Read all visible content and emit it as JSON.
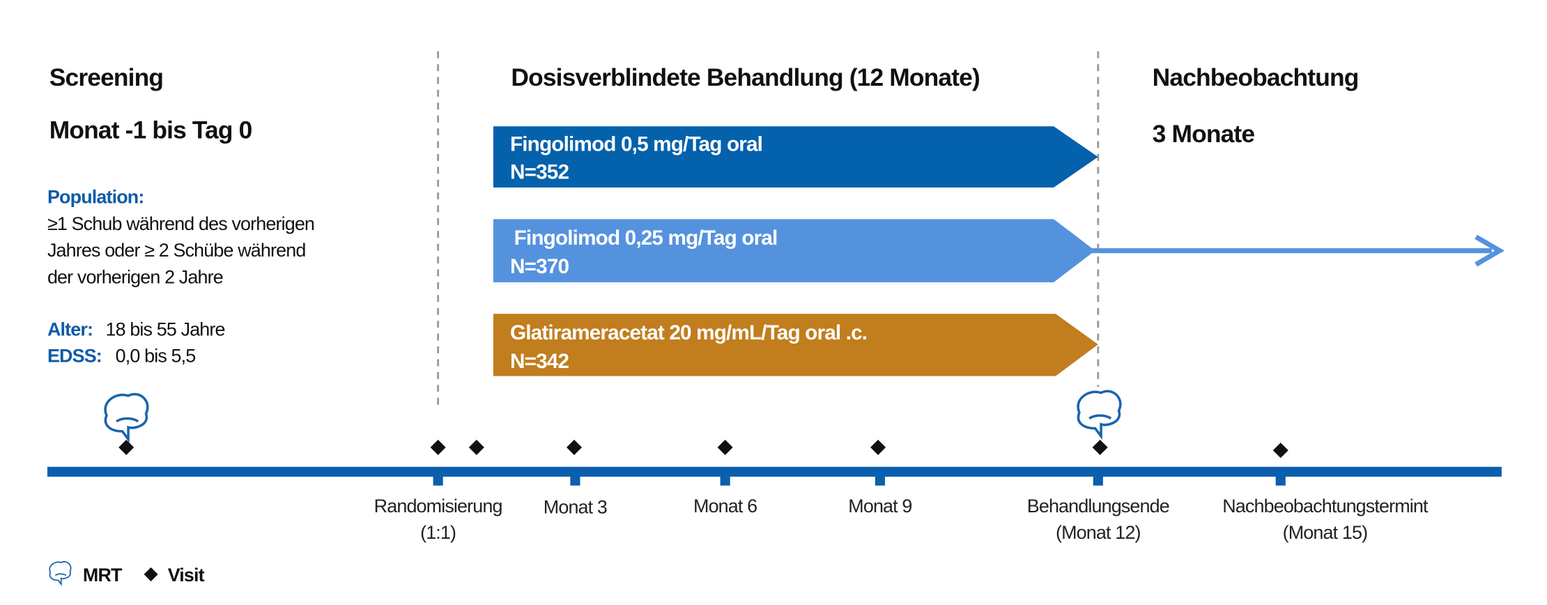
{
  "phases": [
    {
      "title": "Screening",
      "subtitle": "Monat -1 bis Tag 0"
    },
    {
      "title": "Dosisverblindete Behandlung (12 Monate)"
    },
    {
      "title": "Nachbeobachtung",
      "subtitle": "3 Monate"
    }
  ],
  "population": {
    "label": "Population:",
    "lines": [
      "≥1 Schub während des vorherigen",
      "Jahres oder ≥ 2 Schübe während",
      "der vorherigen 2 Jahre"
    ]
  },
  "criteria": [
    {
      "label": "Alter:",
      "text": "18 bis 55 Jahre"
    },
    {
      "label": "EDSS:",
      "text": "0,0 bis 5,5"
    }
  ],
  "arms": [
    {
      "name": "Fingolimod 0,5 mg/Tag oral",
      "n": "N=352"
    },
    {
      "name": "Fingolimod 0,25 mg/Tag oral",
      "n": "N=370"
    },
    {
      "name": "Glatirameracetat 20 mg/mL/Tag oral .c.",
      "n": "N=342"
    }
  ],
  "timeline": [
    {
      "lines": [
        "Randomisierung",
        "(1:1)"
      ]
    },
    {
      "lines": [
        "Monat 3"
      ]
    },
    {
      "lines": [
        "Monat 6"
      ]
    },
    {
      "lines": [
        "Monat 9"
      ]
    },
    {
      "lines": [
        "Behandlungsende",
        "(Monat 12)"
      ]
    },
    {
      "lines": [
        "Nachbeobachtungstermint",
        "(Monat 15)"
      ]
    }
  ],
  "legend": {
    "mri": "MRT",
    "visit": "Visit"
  }
}
